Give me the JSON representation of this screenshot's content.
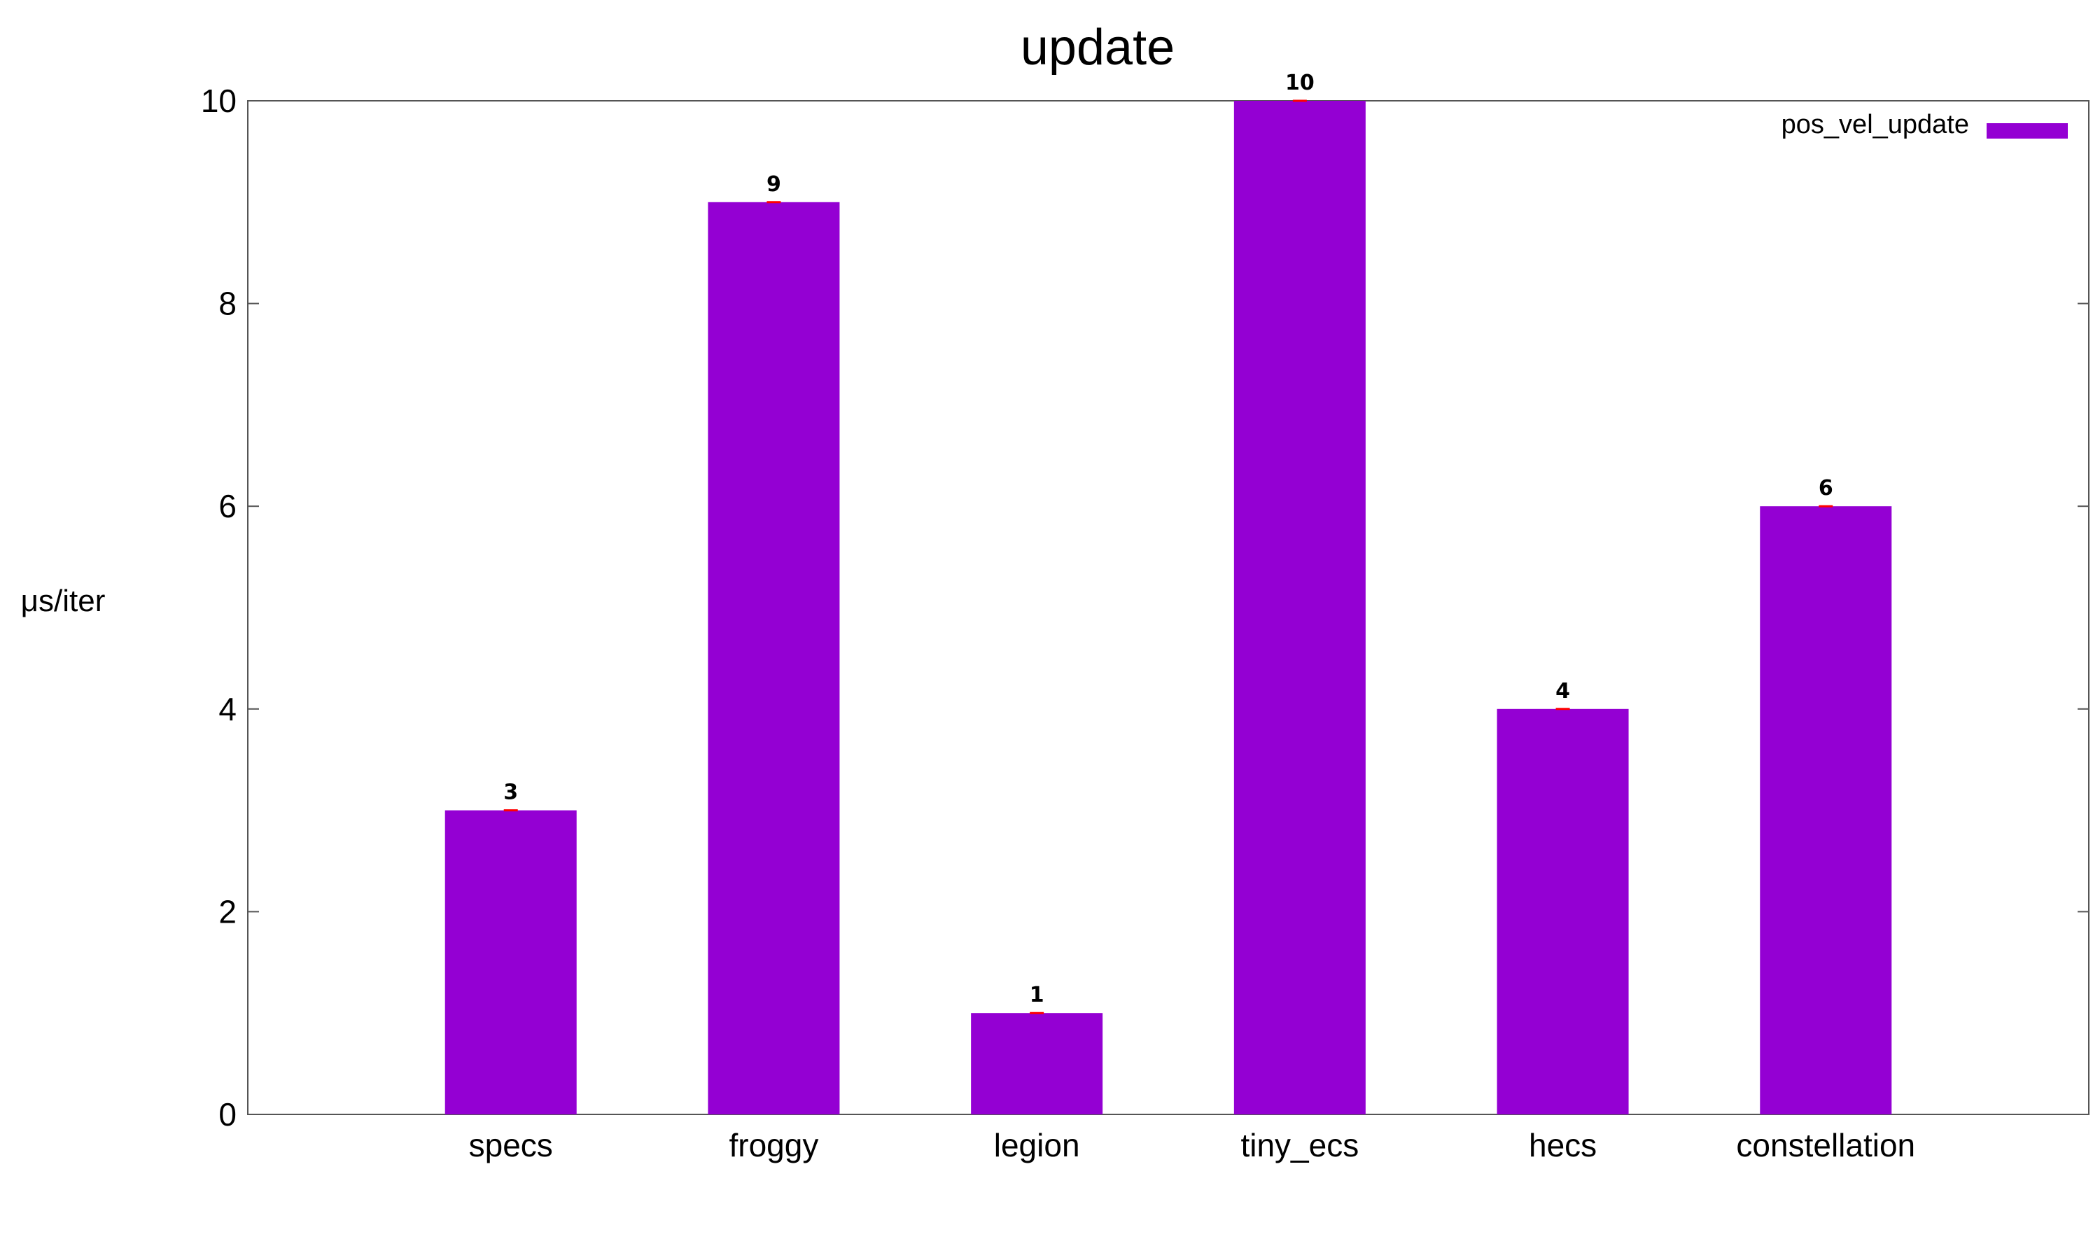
{
  "chart_data": {
    "type": "bar",
    "title": "update",
    "xlabel": "",
    "ylabel": "μs/iter",
    "categories": [
      "specs",
      "froggy",
      "legion",
      "tiny_ecs",
      "hecs",
      "constellation"
    ],
    "series": [
      {
        "name": "pos_vel_update",
        "values": [
          3,
          9,
          1,
          10,
          4,
          6
        ],
        "color": "#9400d3"
      }
    ],
    "data_labels": [
      "3",
      "9",
      "1",
      "10",
      "4",
      "6"
    ],
    "ylim": [
      0,
      10
    ],
    "yticks": [
      0,
      2,
      4,
      6,
      8,
      10
    ],
    "ytick_labels": [
      "0",
      "2",
      "4",
      "6",
      "8",
      "10"
    ],
    "xlim": [
      -1,
      6
    ],
    "grid": false,
    "legend_position": "top-right",
    "error_bar_color": "#ff0000"
  }
}
